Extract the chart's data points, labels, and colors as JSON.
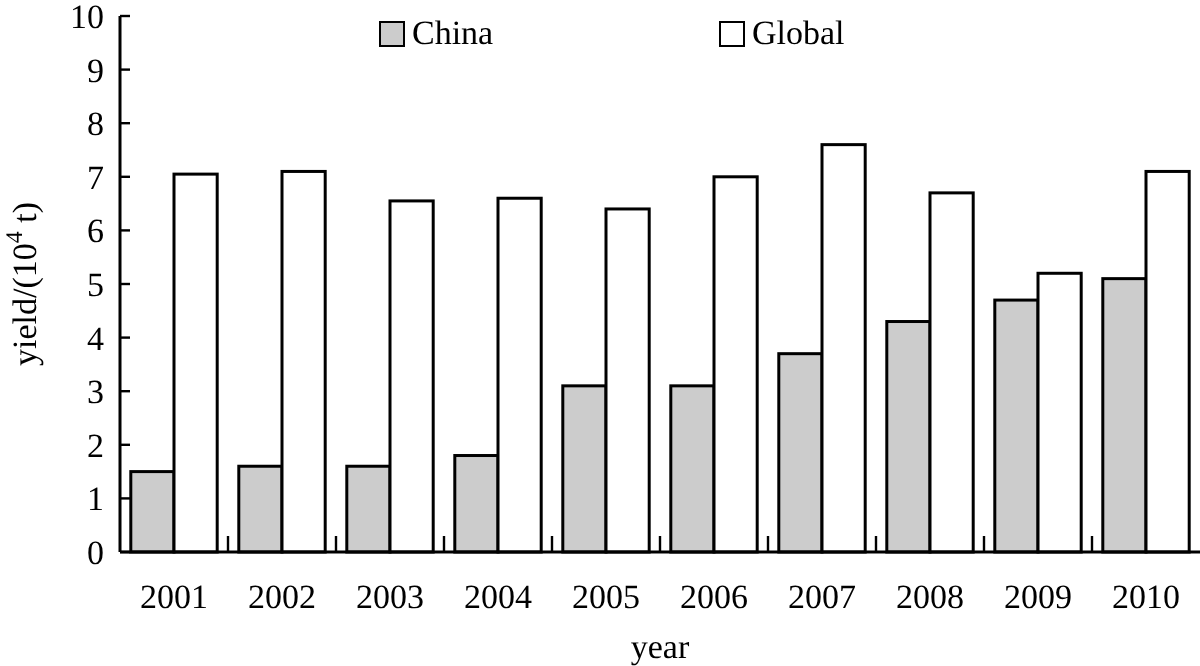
{
  "chart_data": {
    "type": "bar",
    "xlabel": "year",
    "ylabel": "yield/(10$^{4}$ t)",
    "categories": [
      "2001",
      "2002",
      "2003",
      "2004",
      "2005",
      "2006",
      "2007",
      "2008",
      "2009",
      "2010"
    ],
    "series": [
      {
        "name": "China",
        "color": "#cccccc",
        "values": [
          1.5,
          1.6,
          1.6,
          1.8,
          3.1,
          3.1,
          3.7,
          4.3,
          4.7,
          5.1
        ]
      },
      {
        "name": "Global",
        "color": "#ffffff",
        "values": [
          7.05,
          7.1,
          6.55,
          6.6,
          6.4,
          7.0,
          7.6,
          6.7,
          5.2,
          7.1
        ]
      }
    ],
    "ylim": [
      0,
      10
    ],
    "yticks": [
      0,
      1,
      2,
      3,
      4,
      5,
      6,
      7,
      8,
      9,
      10
    ],
    "legend": "top",
    "grid": false
  }
}
